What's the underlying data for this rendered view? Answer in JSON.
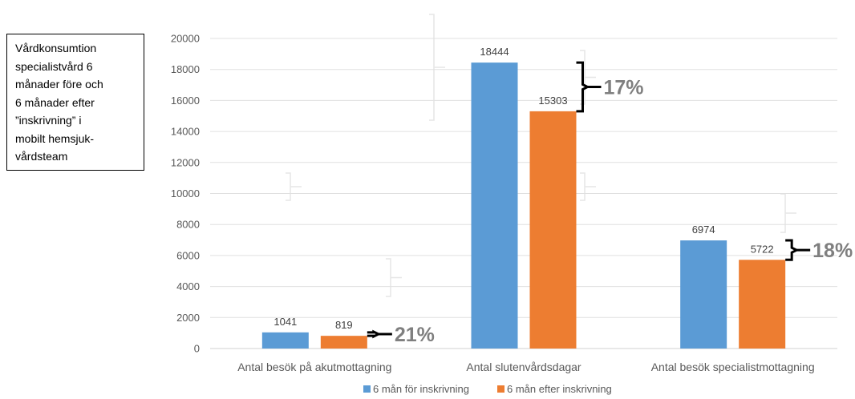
{
  "side_note": {
    "lines": [
      "Vårdkonsumtion",
      "specialistvård 6",
      "månader före och",
      "6 månader efter",
      "”inskrivning” i",
      "mobilt hemsjuk-",
      "vårdsteam"
    ]
  },
  "chart_data": {
    "type": "bar",
    "title": "",
    "xlabel": "",
    "ylabel": "",
    "ylim": [
      0,
      20000
    ],
    "yticks": [
      0,
      2000,
      4000,
      6000,
      8000,
      10000,
      12000,
      14000,
      16000,
      18000,
      20000
    ],
    "ytick_labels": [
      "0",
      "2000",
      "4000",
      "6000",
      "8000",
      "10000",
      "12000",
      "14000",
      "16000",
      "18000",
      "20000"
    ],
    "grid": true,
    "legend": "bottom",
    "categories": [
      "Antal besök på akutmottagning",
      "Antal slutenvårdsdagar",
      "Antal besök specialistmottagning"
    ],
    "series": [
      {
        "name": "6 mån för inskrivning",
        "color": "#5b9bd5",
        "values": [
          1041,
          18444,
          6974
        ],
        "labels": [
          "1041",
          "18444",
          "6974"
        ]
      },
      {
        "name": "6 mån efter inskrivning",
        "color": "#ed7d31",
        "values": [
          819,
          15303,
          5722
        ],
        "labels": [
          "819",
          "15303",
          "5722"
        ]
      }
    ],
    "annotations": [
      "21%",
      "17%",
      "18%"
    ]
  }
}
